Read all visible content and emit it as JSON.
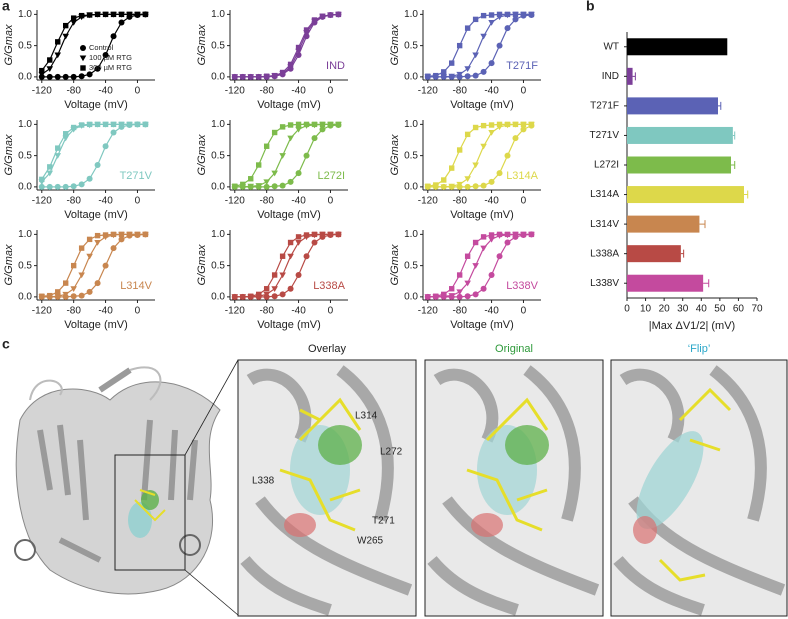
{
  "panel_labels": [
    "a",
    "b",
    "c"
  ],
  "structure": {
    "titles": [
      "Overlay",
      "Original",
      "‘Flip’"
    ],
    "title_colors": [
      "#222222",
      "#2e9a3a",
      "#2aa7c9"
    ],
    "residues": [
      "L314",
      "L272",
      "L338",
      "T271",
      "W265"
    ]
  },
  "chart_data": [
    {
      "type": "line",
      "color": "#000000",
      "x": [
        -120,
        -110,
        -100,
        -90,
        -80,
        -70,
        -60,
        -50,
        -40,
        -30,
        -20,
        -10,
        0,
        10
      ],
      "xlim": [
        -126,
        22
      ],
      "xticks": [
        -120,
        -80,
        -40,
        0
      ],
      "ylim": [
        -0.05,
        1.07
      ],
      "yticks": [
        {
          "value": 0,
          "label": "0.0"
        },
        {
          "value": 0.5,
          "label": "0.5"
        },
        {
          "value": 1,
          "label": "1.0"
        }
      ],
      "xlabel": "Voltage (mV)",
      "ylabel": "G/Gmax",
      "legend": "lower right",
      "series": [
        {
          "name": "Control",
          "marker": "circle",
          "values": [
            0,
            0,
            0,
            0,
            0,
            0.01,
            0.04,
            0.13,
            0.35,
            0.65,
            0.87,
            0.96,
            0.99,
            1
          ]
        },
        {
          "name": "100 µM RTG",
          "marker": "triangle",
          "values": [
            0.04,
            0.13,
            0.35,
            0.65,
            0.87,
            0.96,
            0.99,
            1,
            1,
            1,
            1,
            1,
            1,
            1
          ]
        },
        {
          "name": "300 µM RTG",
          "marker": "square",
          "values": [
            0.1,
            0.27,
            0.56,
            0.82,
            0.94,
            0.98,
            0.99,
            1,
            1,
            1,
            1,
            1,
            1,
            1
          ]
        }
      ]
    },
    {
      "type": "line",
      "color": "#7b3f98",
      "annotation": "IND",
      "x": [
        -120,
        -110,
        -100,
        -90,
        -80,
        -70,
        -60,
        -50,
        -40,
        -30,
        -20,
        -10,
        0,
        10
      ],
      "xlim": [
        -126,
        22
      ],
      "xticks": [
        -120,
        -80,
        -40,
        0
      ],
      "ylim": [
        -0.05,
        1.07
      ],
      "yticks": [
        {
          "value": 0,
          "label": "0.0"
        },
        {
          "value": 0.5,
          "label": "0.5"
        },
        {
          "value": 1,
          "label": "1.0"
        }
      ],
      "xlabel": "Voltage (mV)",
      "ylabel": "G/Gmax",
      "series": [
        {
          "marker": "circle",
          "values": [
            0,
            0,
            0,
            0,
            0,
            0.01,
            0.04,
            0.13,
            0.35,
            0.65,
            0.87,
            0.96,
            0.99,
            1
          ]
        },
        {
          "marker": "triangle",
          "values": [
            0,
            0,
            0,
            0,
            0,
            0.02,
            0.05,
            0.16,
            0.41,
            0.71,
            0.89,
            0.97,
            0.99,
            1
          ]
        },
        {
          "marker": "square",
          "values": [
            0,
            0,
            0,
            0,
            0.01,
            0.02,
            0.07,
            0.2,
            0.47,
            0.75,
            0.91,
            0.97,
            0.99,
            1
          ]
        }
      ]
    },
    {
      "type": "line",
      "color": "#5b62b5",
      "annotation": "T271F",
      "x": [
        -120,
        -110,
        -100,
        -90,
        -80,
        -70,
        -60,
        -50,
        -40,
        -30,
        -20,
        -10,
        0,
        10
      ],
      "xlim": [
        -126,
        22
      ],
      "xticks": [
        -120,
        -80,
        -40,
        0
      ],
      "ylim": [
        -0.05,
        1.07
      ],
      "yticks": [
        {
          "value": 0,
          "label": "0.0"
        },
        {
          "value": 0.5,
          "label": "0.5"
        },
        {
          "value": 1,
          "label": "1.0"
        }
      ],
      "xlabel": "Voltage (mV)",
      "ylabel": "G/Gmax",
      "series": [
        {
          "marker": "circle",
          "values": [
            0,
            0,
            0,
            0,
            0,
            0.01,
            0.02,
            0.08,
            0.22,
            0.5,
            0.78,
            0.92,
            0.98,
            0.99
          ]
        },
        {
          "marker": "triangle",
          "values": [
            0,
            0,
            0,
            0.01,
            0.04,
            0.13,
            0.35,
            0.65,
            0.87,
            0.96,
            0.99,
            1,
            1,
            1
          ]
        },
        {
          "marker": "square",
          "values": [
            0.01,
            0.02,
            0.08,
            0.22,
            0.5,
            0.78,
            0.92,
            0.98,
            0.99,
            1,
            1,
            1,
            1,
            1
          ]
        }
      ]
    },
    {
      "type": "line",
      "color": "#7fc8c0",
      "annotation": "T271V",
      "x": [
        -120,
        -110,
        -100,
        -90,
        -80,
        -70,
        -60,
        -50,
        -40,
        -30,
        -20,
        -10,
        0,
        10
      ],
      "xlim": [
        -126,
        22
      ],
      "xticks": [
        -120,
        -80,
        -40,
        0
      ],
      "ylim": [
        -0.05,
        1.07
      ],
      "yticks": [
        {
          "value": 0,
          "label": "0.0"
        },
        {
          "value": 0.5,
          "label": "0.5"
        },
        {
          "value": 1,
          "label": "1.0"
        }
      ],
      "xlabel": "Voltage (mV)",
      "ylabel": "G/Gmax",
      "series": [
        {
          "marker": "circle",
          "values": [
            0,
            0,
            0,
            0,
            0.01,
            0.04,
            0.13,
            0.35,
            0.65,
            0.87,
            0.96,
            0.99,
            1,
            1
          ]
        },
        {
          "marker": "triangle",
          "values": [
            0.08,
            0.22,
            0.5,
            0.78,
            0.92,
            0.98,
            0.99,
            1,
            1,
            1,
            1,
            1,
            1,
            1
          ]
        },
        {
          "marker": "square",
          "values": [
            0.12,
            0.32,
            0.62,
            0.85,
            0.95,
            0.99,
            1,
            1,
            1,
            1,
            1,
            1,
            1,
            1
          ]
        }
      ]
    },
    {
      "type": "line",
      "color": "#7dbb4b",
      "annotation": "L272I",
      "x": [
        -120,
        -110,
        -100,
        -90,
        -80,
        -70,
        -60,
        -50,
        -40,
        -30,
        -20,
        -10,
        0,
        10
      ],
      "xlim": [
        -126,
        22
      ],
      "xticks": [
        -120,
        -80,
        -40,
        0
      ],
      "ylim": [
        -0.05,
        1.07
      ],
      "yticks": [
        {
          "value": 0,
          "label": "0.0"
        },
        {
          "value": 0.5,
          "label": "0.5"
        },
        {
          "value": 1,
          "label": "1.0"
        }
      ],
      "xlabel": "Voltage (mV)",
      "ylabel": "G/Gmax",
      "series": [
        {
          "marker": "circle",
          "values": [
            0,
            0,
            0,
            0,
            0,
            0.01,
            0.02,
            0.08,
            0.22,
            0.5,
            0.78,
            0.92,
            0.98,
            0.99
          ]
        },
        {
          "marker": "triangle",
          "values": [
            0,
            0,
            0.01,
            0.02,
            0.08,
            0.22,
            0.5,
            0.78,
            0.92,
            0.98,
            0.99,
            1,
            1,
            1
          ]
        },
        {
          "marker": "square",
          "values": [
            0.01,
            0.04,
            0.13,
            0.35,
            0.65,
            0.87,
            0.96,
            0.99,
            1,
            1,
            1,
            1,
            1,
            1
          ]
        }
      ]
    },
    {
      "type": "line",
      "color": "#ddd84a",
      "annotation": "L314A",
      "x": [
        -120,
        -110,
        -100,
        -90,
        -80,
        -70,
        -60,
        -50,
        -40,
        -30,
        -20,
        -10,
        0,
        10
      ],
      "xlim": [
        -126,
        22
      ],
      "xticks": [
        -120,
        -80,
        -40,
        0
      ],
      "ylim": [
        -0.05,
        1.07
      ],
      "yticks": [
        {
          "value": 0,
          "label": "0.0"
        },
        {
          "value": 0.5,
          "label": "0.5"
        },
        {
          "value": 1,
          "label": "1.0"
        }
      ],
      "xlabel": "Voltage (mV)",
      "ylabel": "G/Gmax",
      "series": [
        {
          "marker": "circle",
          "values": [
            0,
            0,
            0,
            0,
            0,
            0,
            0.01,
            0.02,
            0.08,
            0.22,
            0.5,
            0.78,
            0.92,
            0.98
          ]
        },
        {
          "marker": "triangle",
          "values": [
            0,
            0,
            0,
            0.01,
            0.04,
            0.13,
            0.35,
            0.65,
            0.87,
            0.96,
            0.99,
            1,
            1,
            1
          ]
        },
        {
          "marker": "square",
          "values": [
            0.01,
            0.03,
            0.11,
            0.3,
            0.59,
            0.84,
            0.95,
            0.98,
            0.99,
            1,
            1,
            1,
            1,
            1
          ]
        }
      ]
    },
    {
      "type": "line",
      "color": "#c8864f",
      "annotation": "L314V",
      "x": [
        -120,
        -110,
        -100,
        -90,
        -80,
        -70,
        -60,
        -50,
        -40,
        -30,
        -20,
        -10,
        0,
        10
      ],
      "xlim": [
        -126,
        22
      ],
      "xticks": [
        -120,
        -80,
        -40,
        0
      ],
      "ylim": [
        -0.05,
        1.07
      ],
      "yticks": [
        {
          "value": 0,
          "label": "0.0"
        },
        {
          "value": 0.5,
          "label": "0.5"
        },
        {
          "value": 1,
          "label": "1.0"
        }
      ],
      "xlabel": "Voltage (mV)",
      "ylabel": "G/Gmax",
      "series": [
        {
          "marker": "circle",
          "values": [
            0,
            0,
            0,
            0,
            0.01,
            0.02,
            0.08,
            0.22,
            0.5,
            0.78,
            0.92,
            0.98,
            0.99,
            1
          ]
        },
        {
          "marker": "triangle",
          "values": [
            0,
            0,
            0.01,
            0.04,
            0.13,
            0.35,
            0.65,
            0.87,
            0.96,
            0.99,
            1,
            1,
            1,
            1
          ]
        },
        {
          "marker": "square",
          "values": [
            0.01,
            0.02,
            0.08,
            0.22,
            0.5,
            0.78,
            0.92,
            0.98,
            0.99,
            1,
            1,
            1,
            1,
            1
          ]
        }
      ]
    },
    {
      "type": "line",
      "color": "#b84a45",
      "annotation": "L338A",
      "x": [
        -120,
        -110,
        -100,
        -90,
        -80,
        -70,
        -60,
        -50,
        -40,
        -30,
        -20,
        -10,
        0,
        10
      ],
      "xlim": [
        -126,
        22
      ],
      "xticks": [
        -120,
        -80,
        -40,
        0
      ],
      "ylim": [
        -0.05,
        1.07
      ],
      "yticks": [
        {
          "value": 0,
          "label": "0.0"
        },
        {
          "value": 0.5,
          "label": "0.5"
        },
        {
          "value": 1,
          "label": "1.0"
        }
      ],
      "xlabel": "Voltage (mV)",
      "ylabel": "G/Gmax",
      "series": [
        {
          "marker": "circle",
          "values": [
            0,
            0,
            0,
            0,
            0,
            0.01,
            0.04,
            0.13,
            0.35,
            0.65,
            0.87,
            0.96,
            0.99,
            1
          ]
        },
        {
          "marker": "triangle",
          "values": [
            0,
            0,
            0,
            0.01,
            0.04,
            0.13,
            0.35,
            0.65,
            0.87,
            0.96,
            0.99,
            1,
            1,
            1
          ]
        },
        {
          "marker": "square",
          "values": [
            0,
            0,
            0.01,
            0.04,
            0.13,
            0.35,
            0.65,
            0.87,
            0.96,
            0.99,
            1,
            1,
            1,
            1
          ]
        }
      ]
    },
    {
      "type": "line",
      "color": "#c44a9e",
      "annotation": "L338V",
      "x": [
        -120,
        -110,
        -100,
        -90,
        -80,
        -70,
        -60,
        -50,
        -40,
        -30,
        -20,
        -10,
        0,
        10
      ],
      "xlim": [
        -126,
        22
      ],
      "xticks": [
        -120,
        -80,
        -40,
        0
      ],
      "ylim": [
        -0.05,
        1.07
      ],
      "yticks": [
        {
          "value": 0,
          "label": "0.0"
        },
        {
          "value": 0.5,
          "label": "0.5"
        },
        {
          "value": 1,
          "label": "1.0"
        }
      ],
      "xlabel": "Voltage (mV)",
      "ylabel": "G/Gmax",
      "series": [
        {
          "marker": "circle",
          "values": [
            0,
            0,
            0,
            0,
            0,
            0.01,
            0.04,
            0.13,
            0.35,
            0.65,
            0.87,
            0.96,
            0.99,
            1
          ]
        },
        {
          "marker": "triangle",
          "values": [
            0,
            0,
            0.01,
            0.02,
            0.08,
            0.22,
            0.5,
            0.78,
            0.92,
            0.98,
            0.99,
            1,
            1,
            1
          ]
        },
        {
          "marker": "square",
          "values": [
            0,
            0.01,
            0.04,
            0.13,
            0.35,
            0.65,
            0.87,
            0.96,
            0.99,
            1,
            1,
            1,
            1,
            1
          ]
        }
      ]
    },
    {
      "type": "hbar",
      "categories": [
        "WT",
        "IND",
        "T271F",
        "T271V",
        "L272I",
        "L314A",
        "L314V",
        "L338A",
        "L338V"
      ],
      "values": [
        54,
        3,
        49,
        57,
        56,
        63,
        39,
        29,
        41
      ],
      "errors": [
        0,
        1.5,
        1.5,
        1,
        2,
        2,
        3,
        1.5,
        3
      ],
      "colors": [
        "#000000",
        "#7b3f98",
        "#5b62b5",
        "#7fc8c0",
        "#7dbb4b",
        "#ddd84a",
        "#c8864f",
        "#b84a45",
        "#c44a9e"
      ],
      "xlim": [
        0,
        70
      ],
      "xticks": [
        0,
        10,
        20,
        30,
        40,
        50,
        60,
        70
      ],
      "xlabel": "|Max ΔV1/2| (mV)"
    }
  ]
}
